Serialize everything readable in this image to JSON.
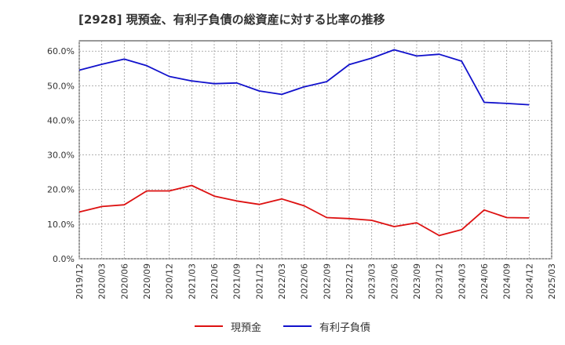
{
  "chart_data": {
    "type": "line",
    "title": "[2928]  現預金、有利子負債の総資産に対する比率の推移",
    "xlabel": "",
    "ylabel": "",
    "ylim": [
      0,
      0.63
    ],
    "yticks": [
      0.0,
      0.1,
      0.2,
      0.3,
      0.4,
      0.5,
      0.6
    ],
    "ytick_labels": [
      "0.0%",
      "10.0%",
      "20.0%",
      "30.0%",
      "40.0%",
      "50.0%",
      "60.0%"
    ],
    "categories": [
      "2019/12",
      "2020/03",
      "2020/06",
      "2020/09",
      "2020/12",
      "2021/03",
      "2021/06",
      "2021/09",
      "2021/12",
      "2022/03",
      "2022/06",
      "2022/09",
      "2022/12",
      "2023/03",
      "2023/06",
      "2023/09",
      "2023/12",
      "2024/03",
      "2024/06",
      "2024/09",
      "2024/12",
      "2025/03"
    ],
    "grid": true,
    "legend_position": "bottom-center",
    "series": [
      {
        "name": "現預金",
        "color": "#dd1111",
        "values": [
          0.135,
          0.151,
          0.156,
          0.196,
          0.196,
          0.212,
          0.181,
          0.167,
          0.157,
          0.173,
          0.153,
          0.119,
          0.116,
          0.111,
          0.093,
          0.104,
          0.067,
          0.084,
          0.141,
          0.119,
          0.118,
          null
        ]
      },
      {
        "name": "有利子負債",
        "color": "#1111cc",
        "values": [
          0.545,
          0.562,
          0.577,
          0.558,
          0.527,
          0.514,
          0.506,
          0.508,
          0.485,
          0.475,
          0.497,
          0.512,
          0.561,
          0.58,
          0.604,
          0.586,
          0.591,
          0.571,
          0.452,
          0.449,
          0.445,
          null
        ]
      }
    ]
  }
}
